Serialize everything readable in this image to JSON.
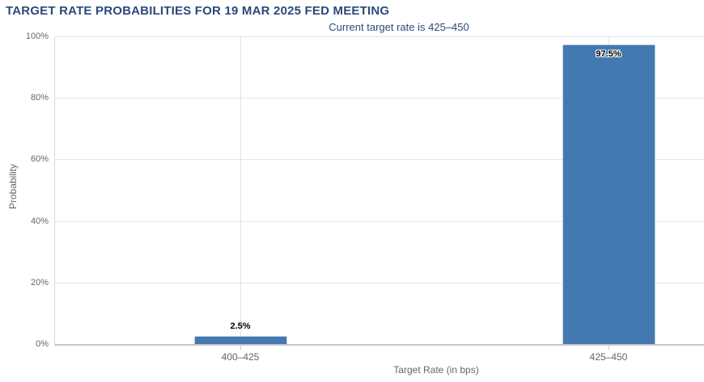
{
  "chart_data": {
    "type": "bar",
    "title": "TARGET RATE PROBABILITIES FOR 19 MAR 2025 FED MEETING",
    "subtitle": "Current target rate is 425–450",
    "xlabel": "Target Rate (in bps)",
    "ylabel": "Probability",
    "categories": [
      "400–425",
      "425–450"
    ],
    "values": [
      2.5,
      97.5
    ],
    "value_labels": [
      "2.5%",
      "97.5%"
    ],
    "ylim": [
      0,
      100
    ],
    "yticks": [
      0,
      20,
      40,
      60,
      80,
      100
    ],
    "ytick_labels": [
      "0%",
      "20%",
      "40%",
      "60%",
      "80%",
      "100%"
    ],
    "grid": true,
    "legend": "none",
    "bar_color": "#4478b0",
    "title_color": "#2b4a7a",
    "axis_label_color": "#666666"
  }
}
